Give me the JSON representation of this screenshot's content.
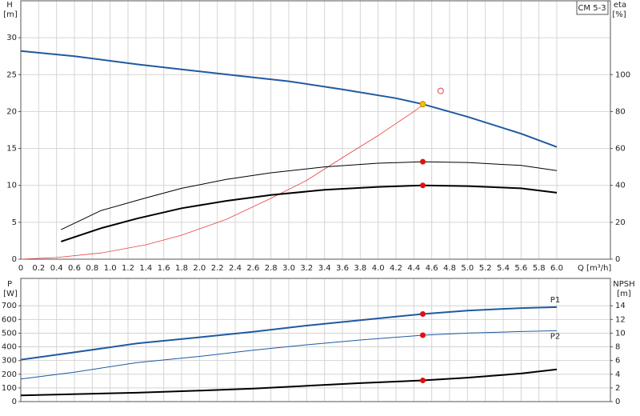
{
  "chart_data": [
    {
      "type": "line",
      "title": "CM 5-3",
      "y_label": "H",
      "y_unit": "[m]",
      "y2_label": "eta",
      "y2_unit": "[%]",
      "x_label": "Q [m³/h]",
      "xlim": [
        0,
        6.6
      ],
      "xticks": [
        0,
        0.2,
        0.4,
        0.6,
        0.8,
        {
          "value": 1,
          "label": "1.0"
        },
        1.2,
        1.4,
        1.6,
        1.8,
        {
          "value": 2,
          "label": "2.0"
        },
        2.2,
        2.4,
        2.6,
        2.8,
        {
          "value": 3,
          "label": "3.0"
        },
        3.2,
        3.4,
        3.6,
        3.8,
        {
          "value": 4,
          "label": "4.0"
        },
        4.2,
        4.4,
        4.6,
        4.8,
        {
          "value": 5,
          "label": "5.0"
        },
        5.2,
        5.4,
        5.6,
        5.8,
        {
          "value": 6,
          "label": "6.0"
        }
      ],
      "ylim": [
        0,
        35
      ],
      "yticks": [
        0,
        5,
        10,
        15,
        20,
        25,
        30
      ],
      "y2lim": [
        0,
        140
      ],
      "y2ticks": [
        0,
        20,
        40,
        60,
        80,
        100
      ],
      "grid": true,
      "series": [
        {
          "color": "#1f5aa0",
          "width": 2,
          "x": [
            0,
            0.6,
            1.3,
            1.8,
            2.4,
            3.0,
            3.6,
            4.2,
            4.5,
            5.0,
            5.6,
            6.0
          ],
          "values": [
            28.2,
            27.5,
            26.4,
            25.7,
            24.9,
            24.1,
            23.0,
            21.8,
            21.0,
            19.3,
            17.0,
            15.2
          ]
        },
        {
          "color": "#e84040",
          "width": 0.8,
          "axis": "y2",
          "x": [
            0,
            0.4,
            0.9,
            1.4,
            1.8,
            2.3,
            2.8,
            3.2,
            3.6,
            4.0,
            4.4,
            4.5
          ],
          "values": [
            0,
            0.9,
            3.4,
            7.8,
            13,
            21.6,
            33,
            42.7,
            55,
            67,
            80,
            83.6
          ]
        },
        {
          "color": "#000000",
          "width": 1,
          "x": [
            0.45,
            0.9,
            1.4,
            1.8,
            2.3,
            2.8,
            3.4,
            4.0,
            4.5,
            5.0,
            5.6,
            6.0
          ],
          "values": [
            4.0,
            6.6,
            8.3,
            9.6,
            10.8,
            11.7,
            12.5,
            13.0,
            13.2,
            13.1,
            12.7,
            12.0
          ]
        },
        {
          "color": "#000000",
          "width": 2,
          "x": [
            0.45,
            0.9,
            1.3,
            1.8,
            2.3,
            2.8,
            3.4,
            4.0,
            4.5,
            5.0,
            5.6,
            6.0
          ],
          "values": [
            2.4,
            4.2,
            5.5,
            6.9,
            7.9,
            8.7,
            9.4,
            9.8,
            10.0,
            9.9,
            9.6,
            9.0
          ]
        },
        {
          "mode": "markers",
          "color": "#e01010",
          "x": [
            4.5,
            4.5
          ],
          "values": [
            13.2,
            10.0
          ]
        },
        {
          "mode": "markers",
          "color": "#f5c000",
          "x": [
            4.5
          ],
          "values": [
            21.0
          ]
        },
        {
          "mode": "markers",
          "color": "#e84040",
          "open": true,
          "x": [
            4.7
          ],
          "values": [
            22.8
          ]
        }
      ]
    },
    {
      "type": "line",
      "y_label": "P",
      "y_unit": "[W]",
      "y2_label": "NPSH",
      "y2_unit": "[m]",
      "xlim": [
        0,
        6.6
      ],
      "ylim": [
        0,
        900
      ],
      "yticks": [
        0,
        100,
        200,
        300,
        400,
        500,
        600,
        700
      ],
      "y2lim": [
        0,
        18
      ],
      "y2ticks": [
        0,
        2,
        4,
        6,
        8,
        10,
        12,
        14
      ],
      "grid": true,
      "series": [
        {
          "name": "P1",
          "color": "#1f5aa0",
          "width": 2,
          "x": [
            0,
            0.6,
            1.3,
            2.0,
            2.6,
            3.2,
            3.8,
            4.5,
            5.0,
            5.6,
            6.0
          ],
          "values": [
            306,
            360,
            425,
            470,
            510,
            555,
            595,
            640,
            665,
            683,
            690
          ]
        },
        {
          "name": "P2",
          "color": "#1f5aa0",
          "width": 1,
          "x": [
            0,
            0.6,
            1.3,
            2.0,
            2.6,
            3.2,
            3.8,
            4.5,
            5.0,
            5.6,
            6.0
          ],
          "values": [
            165,
            215,
            285,
            330,
            375,
            415,
            450,
            485,
            500,
            512,
            518
          ]
        },
        {
          "color": "#000000",
          "width": 2,
          "axis": "y2",
          "x": [
            0,
            1.3,
            2.0,
            2.6,
            3.2,
            3.8,
            4.5,
            5.0,
            5.6,
            6.0
          ],
          "values": [
            0.9,
            1.3,
            1.6,
            1.9,
            2.3,
            2.7,
            3.1,
            3.5,
            4.1,
            4.7
          ]
        },
        {
          "mode": "markers",
          "color": "#e01010",
          "x": [
            4.5,
            4.5
          ],
          "values": [
            640,
            485
          ]
        },
        {
          "mode": "markers",
          "color": "#e01010",
          "axis": "y2",
          "x": [
            4.5
          ],
          "values": [
            3.1
          ]
        }
      ]
    }
  ]
}
